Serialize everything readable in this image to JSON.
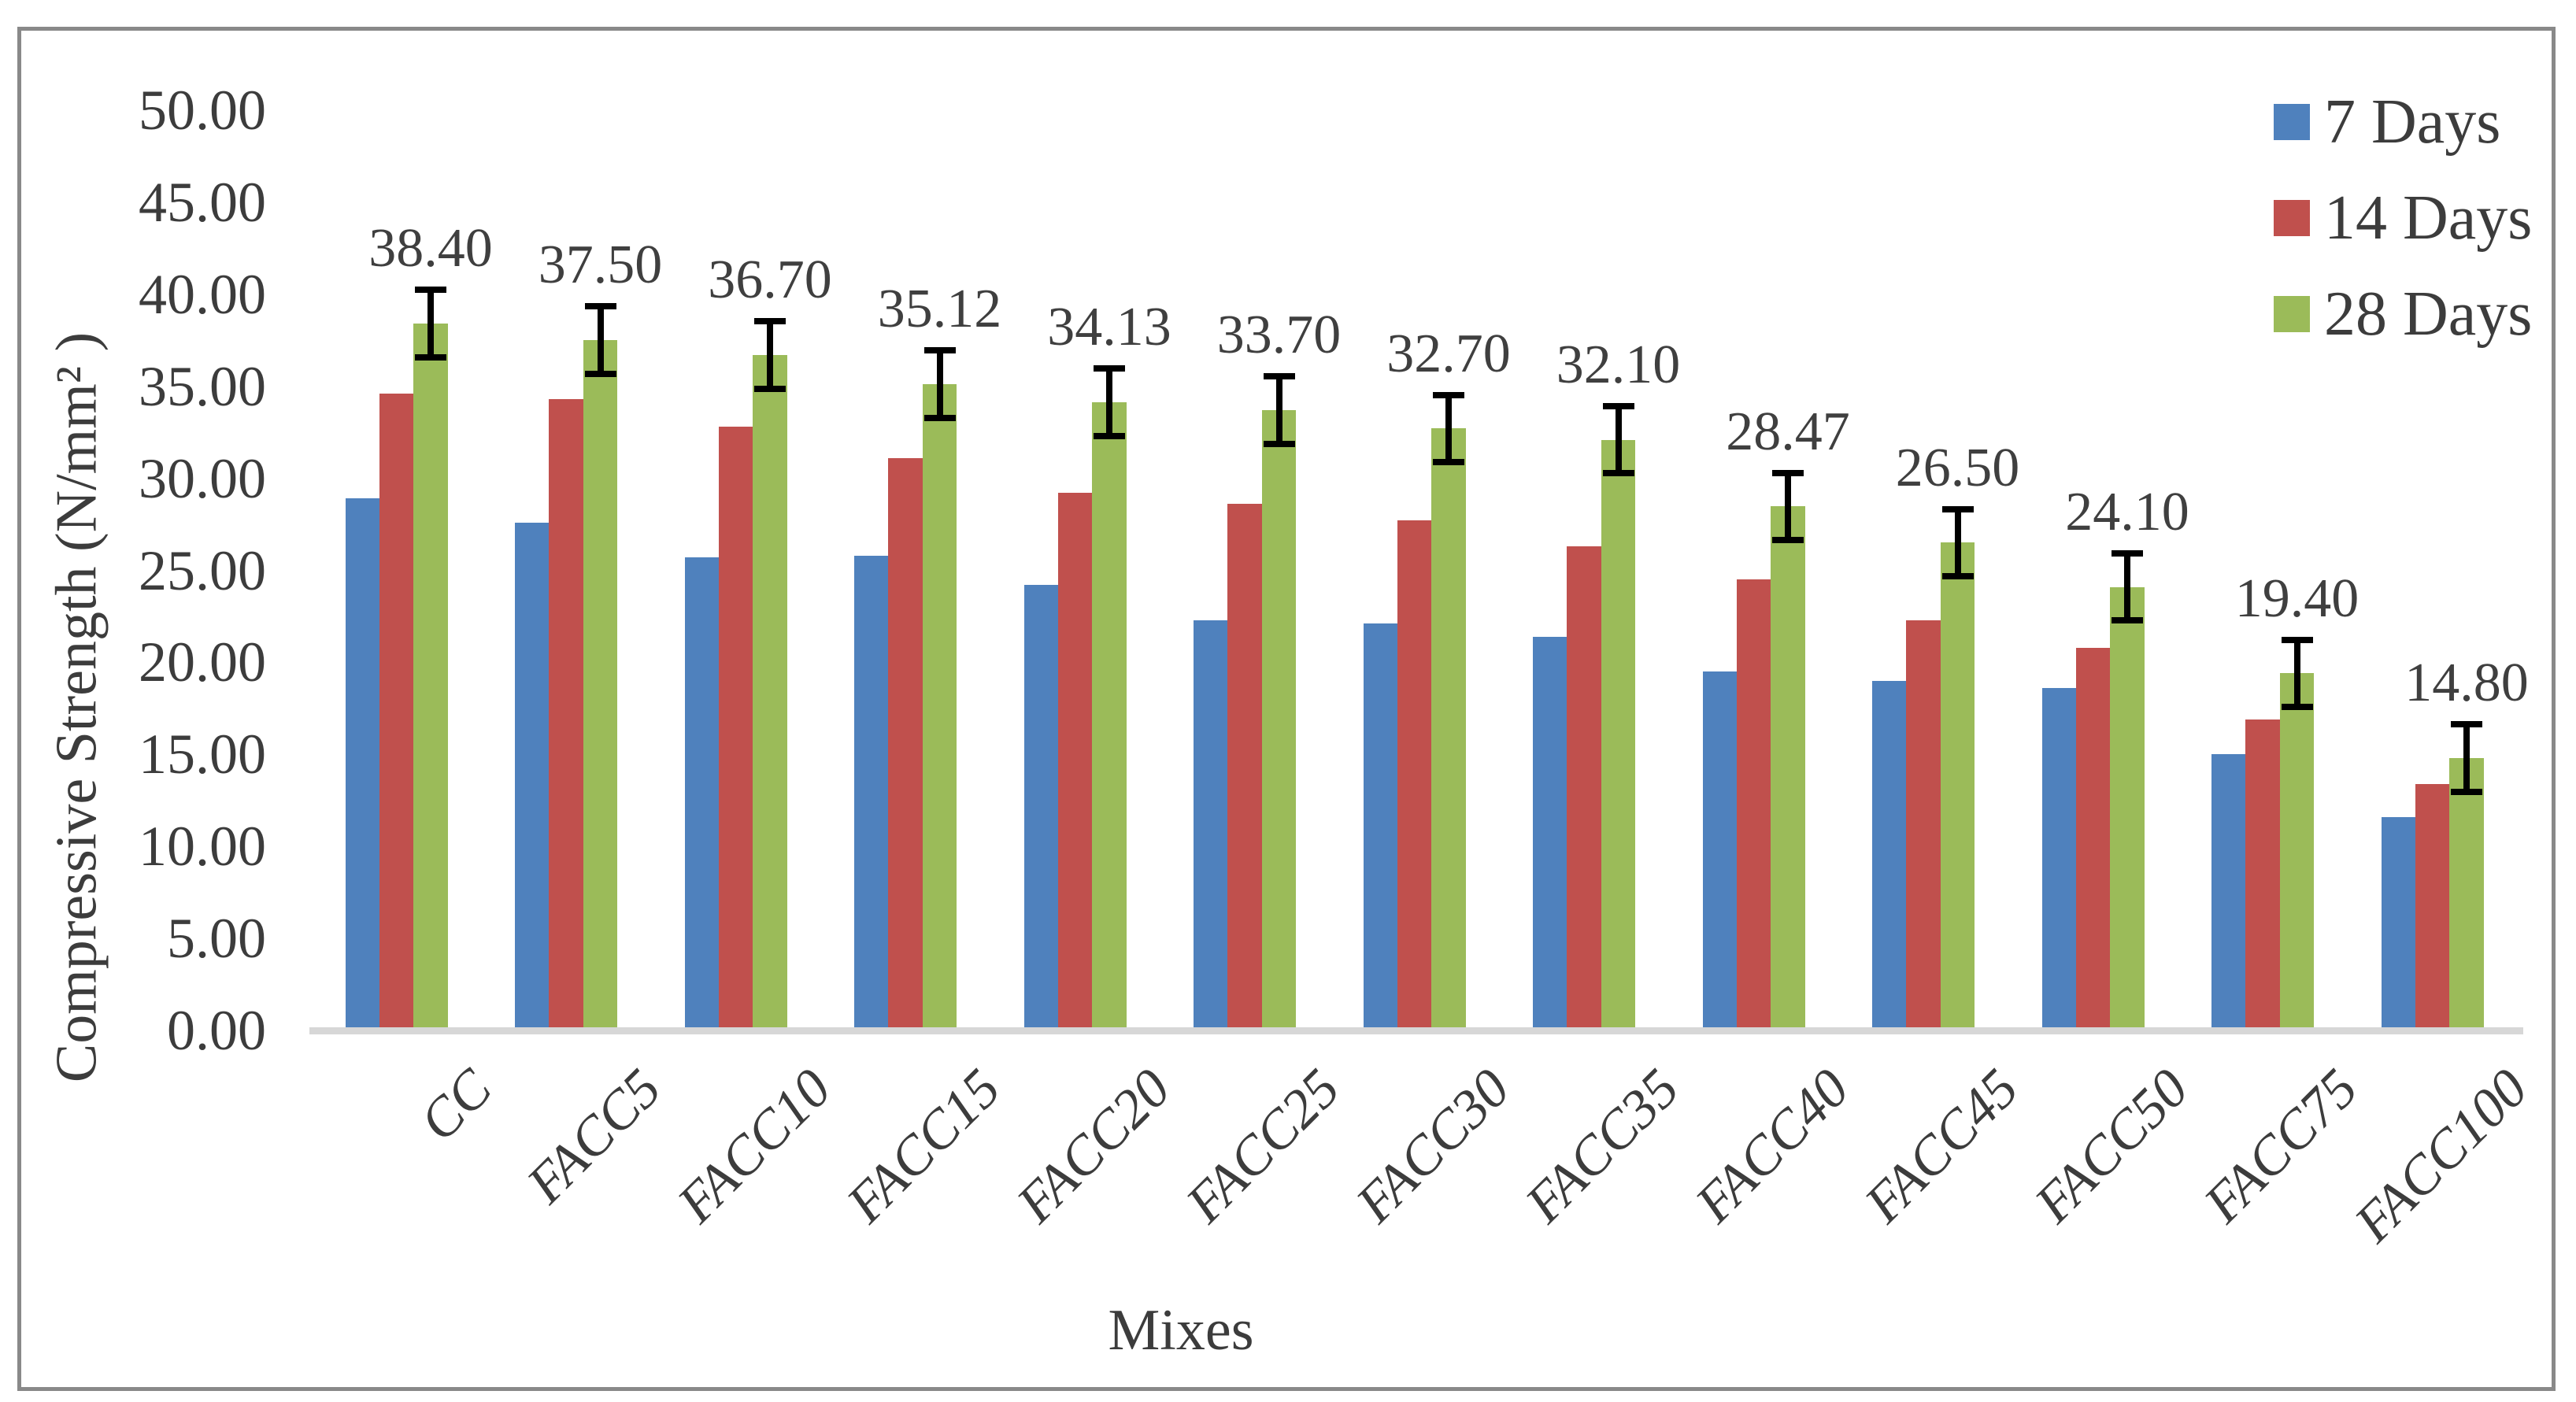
{
  "chart_data": {
    "type": "bar",
    "title": "",
    "xlabel": "Mixes",
    "ylabel": "Compressive Strength (N/mm² )",
    "categories": [
      "CC",
      "FACC5",
      "FACC10",
      "FACC15",
      "FACC20",
      "FACC25",
      "FACC30",
      "FACC35",
      "FACC40",
      "FACC45",
      "FACC50",
      "FACC75",
      "FACC100"
    ],
    "series": [
      {
        "name": "7 Days",
        "color": "#4F81BD",
        "values": [
          28.9,
          27.6,
          25.7,
          25.8,
          24.2,
          22.3,
          22.1,
          21.4,
          19.5,
          19.0,
          18.6,
          15.0,
          11.6
        ]
      },
      {
        "name": "14 Days",
        "color": "#C0504D",
        "values": [
          34.6,
          34.3,
          32.8,
          31.1,
          29.2,
          28.6,
          27.7,
          26.3,
          24.5,
          22.3,
          20.8,
          16.9,
          13.4
        ]
      },
      {
        "name": "28 Days",
        "color": "#9BBB59",
        "values": [
          38.4,
          37.5,
          36.7,
          35.12,
          34.13,
          33.7,
          32.7,
          32.1,
          28.47,
          26.5,
          24.1,
          19.4,
          14.8
        ]
      }
    ],
    "data_labels_28_days": [
      "38.40",
      "37.50",
      "36.70",
      "35.12",
      "34.13",
      "33.70",
      "32.70",
      "32.10",
      "28.47",
      "26.50",
      "24.10",
      "19.40",
      "14.80"
    ],
    "error_bars": {
      "series": "28 Days",
      "plus_minus": 2.0
    },
    "ylim": [
      0,
      50
    ],
    "ytick_step": 5,
    "yticks": [
      "0.00",
      "5.00",
      "10.00",
      "15.00",
      "20.00",
      "25.00",
      "30.00",
      "35.00",
      "40.00",
      "45.00",
      "50.00"
    ],
    "grid": false,
    "legend_position": "top-right"
  },
  "colors": {
    "axis_text": "#3C3C3C",
    "baseline": "#D7D7D7",
    "frame": "#898989",
    "background": "#FFFFFF",
    "error_bar": "#000000"
  }
}
